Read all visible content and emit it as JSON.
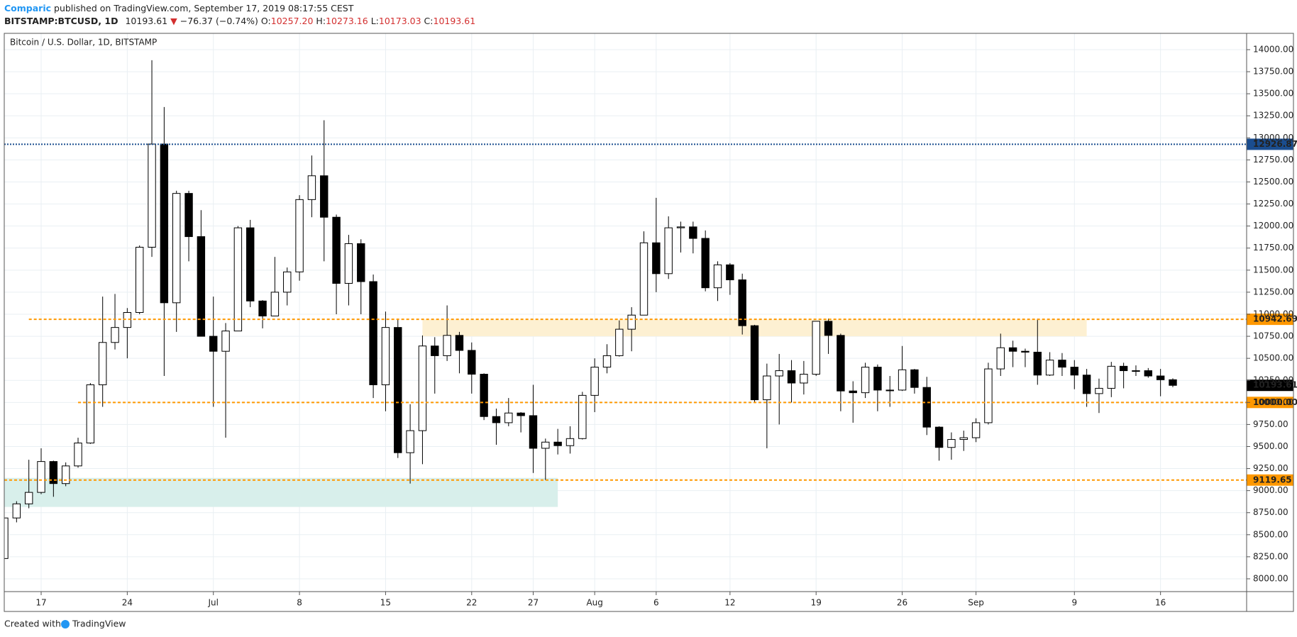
{
  "header": {
    "author": "Comparic",
    "published": " published on TradingView.com, September 17, 2019 08:17:55 CEST",
    "symbol": "BITSTAMP:BTCUSD, 1D",
    "price": "10193.61",
    "arrow": "▼",
    "change": "−76.37 (−0.74%)",
    "ohlc": [
      {
        "label": "O:",
        "value": "10257.20"
      },
      {
        "label": "H:",
        "value": "10273.16"
      },
      {
        "label": "L:",
        "value": "10173.03"
      },
      {
        "label": "C:",
        "value": "10193.61"
      }
    ]
  },
  "footer": {
    "text": "Created with",
    "brand": "TradingView"
  },
  "chart_data": {
    "type": "candlestick",
    "title": "Bitcoin / U.S. Dollar, 1D, BITSTAMP",
    "x": [
      "2019-06-14",
      "2019-06-15",
      "2019-06-16",
      "2019-06-17",
      "2019-06-18",
      "2019-06-19",
      "2019-06-20",
      "2019-06-21",
      "2019-06-22",
      "2019-06-23",
      "2019-06-24",
      "2019-06-25",
      "2019-06-26",
      "2019-06-27",
      "2019-06-28",
      "2019-06-29",
      "2019-06-30",
      "2019-07-01",
      "2019-07-02",
      "2019-07-03",
      "2019-07-04",
      "2019-07-05",
      "2019-07-06",
      "2019-07-07",
      "2019-07-08",
      "2019-07-09",
      "2019-07-10",
      "2019-07-11",
      "2019-07-12",
      "2019-07-13",
      "2019-07-14",
      "2019-07-15",
      "2019-07-16",
      "2019-07-17",
      "2019-07-18",
      "2019-07-19",
      "2019-07-20",
      "2019-07-21",
      "2019-07-22",
      "2019-07-23",
      "2019-07-24",
      "2019-07-25",
      "2019-07-26",
      "2019-07-27",
      "2019-07-28",
      "2019-07-29",
      "2019-07-30",
      "2019-07-31",
      "2019-08-01",
      "2019-08-02",
      "2019-08-03",
      "2019-08-04",
      "2019-08-05",
      "2019-08-06",
      "2019-08-07",
      "2019-08-08",
      "2019-08-09",
      "2019-08-10",
      "2019-08-11",
      "2019-08-12",
      "2019-08-13",
      "2019-08-14",
      "2019-08-15",
      "2019-08-16",
      "2019-08-17",
      "2019-08-18",
      "2019-08-19",
      "2019-08-20",
      "2019-08-21",
      "2019-08-22",
      "2019-08-23",
      "2019-08-24",
      "2019-08-25",
      "2019-08-26",
      "2019-08-27",
      "2019-08-28",
      "2019-08-29",
      "2019-08-30",
      "2019-08-31",
      "2019-09-01",
      "2019-09-02",
      "2019-09-03",
      "2019-09-04",
      "2019-09-05",
      "2019-09-06",
      "2019-09-07",
      "2019-09-08",
      "2019-09-09",
      "2019-09-10",
      "2019-09-11",
      "2019-09-12",
      "2019-09-13",
      "2019-09-14",
      "2019-09-15",
      "2019-09-16",
      "2019-09-17"
    ],
    "open": [
      8230,
      8690,
      8850,
      8980,
      9330,
      9080,
      9280,
      9540,
      10200,
      10680,
      10850,
      11020,
      11760,
      12930,
      11130,
      12370,
      11880,
      10750,
      10580,
      10810,
      11980,
      11150,
      10980,
      11250,
      11480,
      12300,
      12570,
      12100,
      11350,
      11800,
      11370,
      10200,
      10850,
      9430,
      9680,
      10640,
      10530,
      10760,
      10590,
      10320,
      9840,
      9770,
      9880,
      9850,
      9480,
      9550,
      9510,
      9590,
      10080,
      10400,
      10530,
      10830,
      10990,
      11810,
      11460,
      11980,
      11990,
      11860,
      11300,
      11560,
      11390,
      10870,
      10030,
      10300,
      10360,
      10220,
      10320,
      10920,
      10760,
      10130,
      10110,
      10400,
      10140,
      10140,
      10370,
      10170,
      9720,
      9490,
      9580,
      9600,
      9770,
      10380,
      10620,
      10580,
      10570,
      10310,
      10480,
      10400,
      10310,
      10100,
      10160,
      10410,
      10360,
      10360,
      10300,
      10257.2
    ],
    "high": [
      8700,
      8880,
      9350,
      9480,
      9340,
      9320,
      9600,
      10220,
      11200,
      11230,
      11070,
      11780,
      13880,
      13350,
      12400,
      12400,
      12180,
      11200,
      10900,
      12000,
      12070,
      11160,
      11650,
      11530,
      12350,
      12800,
      13200,
      12130,
      11900,
      11850,
      11450,
      11030,
      10950,
      9980,
      10760,
      10740,
      11100,
      10800,
      10680,
      10330,
      9930,
      10050,
      9890,
      10200,
      9590,
      9700,
      9730,
      10120,
      10500,
      10660,
      10930,
      11080,
      11940,
      12320,
      12110,
      12050,
      12050,
      11950,
      11600,
      11580,
      11460,
      10880,
      10440,
      10550,
      10480,
      10470,
      10920,
      10950,
      10780,
      10240,
      10450,
      10430,
      10300,
      10640,
      10380,
      10290,
      9730,
      9660,
      9680,
      9820,
      10450,
      10780,
      10700,
      10610,
      10950,
      10570,
      10560,
      10480,
      10380,
      10270,
      10460,
      10450,
      10420,
      10390,
      10380,
      10273.16
    ],
    "low": [
      8200,
      8640,
      8800,
      8960,
      8930,
      9050,
      9260,
      9530,
      9950,
      10600,
      10500,
      11000,
      11650,
      10300,
      10800,
      11600,
      10750,
      9950,
      9600,
      10810,
      11080,
      10840,
      10980,
      11100,
      11380,
      12100,
      11600,
      11000,
      11100,
      11000,
      10050,
      9900,
      9370,
      9080,
      9300,
      10100,
      10470,
      10330,
      10100,
      9800,
      9520,
      9730,
      9660,
      9200,
      9120,
      9410,
      9420,
      9580,
      9890,
      10330,
      10520,
      10580,
      10990,
      11250,
      11400,
      11700,
      11690,
      11260,
      11150,
      11220,
      10770,
      10000,
      9480,
      9750,
      10000,
      10090,
      10300,
      10550,
      9900,
      9770,
      10050,
      9900,
      9950,
      10130,
      10100,
      9630,
      9340,
      9350,
      9450,
      9550,
      9750,
      10300,
      10400,
      10400,
      10200,
      10300,
      10300,
      10150,
      9950,
      9880,
      10060,
      10160,
      10300,
      10280,
      10070,
      10173.03
    ],
    "close": [
      8690,
      8850,
      8980,
      9330,
      9080,
      9280,
      9540,
      10200,
      10680,
      10850,
      11020,
      11760,
      12930,
      11130,
      12370,
      11880,
      10750,
      10580,
      10810,
      11980,
      11150,
      10980,
      11250,
      11480,
      12300,
      12570,
      12100,
      11350,
      11800,
      11370,
      10200,
      10850,
      9430,
      9680,
      10640,
      10530,
      10760,
      10590,
      10320,
      9840,
      9770,
      9880,
      9850,
      9480,
      9550,
      9510,
      9590,
      10080,
      10400,
      10530,
      10830,
      10990,
      11810,
      11460,
      11980,
      11990,
      11860,
      11300,
      11560,
      11390,
      10870,
      10030,
      10300,
      10360,
      10220,
      10320,
      10920,
      10760,
      10130,
      10110,
      10400,
      10140,
      10140,
      10370,
      10170,
      9720,
      9490,
      9580,
      9600,
      9770,
      10380,
      10620,
      10580,
      10570,
      10310,
      10480,
      10400,
      10310,
      10100,
      10160,
      10410,
      10360,
      10360,
      10300,
      10257.2,
      10193.61
    ],
    "up_color": "#ffffff",
    "down_color": "#000000",
    "wick_color": "#000000",
    "xlim": [
      "2019-06-14",
      "2019-09-23"
    ],
    "xticks": [
      {
        "value": "2019-06-17",
        "label": "17"
      },
      {
        "value": "2019-06-24",
        "label": "24"
      },
      {
        "value": "2019-07-01",
        "label": "Jul"
      },
      {
        "value": "2019-07-08",
        "label": "8"
      },
      {
        "value": "2019-07-15",
        "label": "15"
      },
      {
        "value": "2019-07-22",
        "label": "22"
      },
      {
        "value": "2019-07-27",
        "label": "27"
      },
      {
        "value": "2019-08-01",
        "label": "Aug"
      },
      {
        "value": "2019-08-06",
        "label": "6"
      },
      {
        "value": "2019-08-12",
        "label": "12"
      },
      {
        "value": "2019-08-19",
        "label": "19"
      },
      {
        "value": "2019-08-26",
        "label": "26"
      },
      {
        "value": "2019-09-01",
        "label": "Sep"
      },
      {
        "value": "2019-09-09",
        "label": "9"
      },
      {
        "value": "2019-09-16",
        "label": "16"
      }
    ],
    "ylim": [
      7855,
      14185
    ],
    "yticks": [
      {
        "value": 8000,
        "label": "8000.00"
      },
      {
        "value": 8250,
        "label": "8250.00"
      },
      {
        "value": 8500,
        "label": "8500.00"
      },
      {
        "value": 8750,
        "label": "8750.00"
      },
      {
        "value": 9000,
        "label": "9000.00"
      },
      {
        "value": 9250,
        "label": "9250.00"
      },
      {
        "value": 9500,
        "label": "9500.00"
      },
      {
        "value": 9750,
        "label": "9750.00"
      },
      {
        "value": 10000,
        "label": "10000.00"
      },
      {
        "value": 10250,
        "label": "10250.00"
      },
      {
        "value": 10500,
        "label": "10500.00"
      },
      {
        "value": 10750,
        "label": "10750.00"
      },
      {
        "value": 11000,
        "label": "11000.00"
      },
      {
        "value": 11250,
        "label": "11250.00"
      },
      {
        "value": 11500,
        "label": "11500.00"
      },
      {
        "value": 11750,
        "label": "11750.00"
      },
      {
        "value": 12000,
        "label": "12000.00"
      },
      {
        "value": 12250,
        "label": "12250.00"
      },
      {
        "value": 12500,
        "label": "12500.00"
      },
      {
        "value": 12750,
        "label": "12750.00"
      },
      {
        "value": 13000,
        "label": "13000.00"
      },
      {
        "value": 13250,
        "label": "13250.00"
      },
      {
        "value": 13500,
        "label": "13500.00"
      },
      {
        "value": 13750,
        "label": "13750.00"
      },
      {
        "value": 14000,
        "label": "14000.00"
      }
    ],
    "grid": true,
    "levels": [
      {
        "value": 12926.87,
        "label": "12926.87",
        "color": "#1a4d8f",
        "style": "dotted",
        "from": "2019-06-14"
      },
      {
        "value": 10942.69,
        "label": "10942.69",
        "color": "#ff9800",
        "style": "dashed",
        "from": "2019-06-16"
      },
      {
        "value": 10000,
        "label": "10000.00",
        "color": "#ff9800",
        "style": "dashed",
        "from": "2019-06-20"
      },
      {
        "value": 9119.65,
        "label": "9119.65",
        "color": "#ff9800",
        "style": "dashed",
        "from": "2019-06-14"
      }
    ],
    "zones": [
      {
        "low": 10750,
        "high": 10940,
        "from": "2019-07-18",
        "to": "2019-09-10",
        "color": "#fdf0d2"
      },
      {
        "low": 8815,
        "high": 9144,
        "from": "2019-06-14",
        "to": "2019-07-29",
        "color": "#d8efeb"
      }
    ],
    "last_color": "#000000"
  }
}
